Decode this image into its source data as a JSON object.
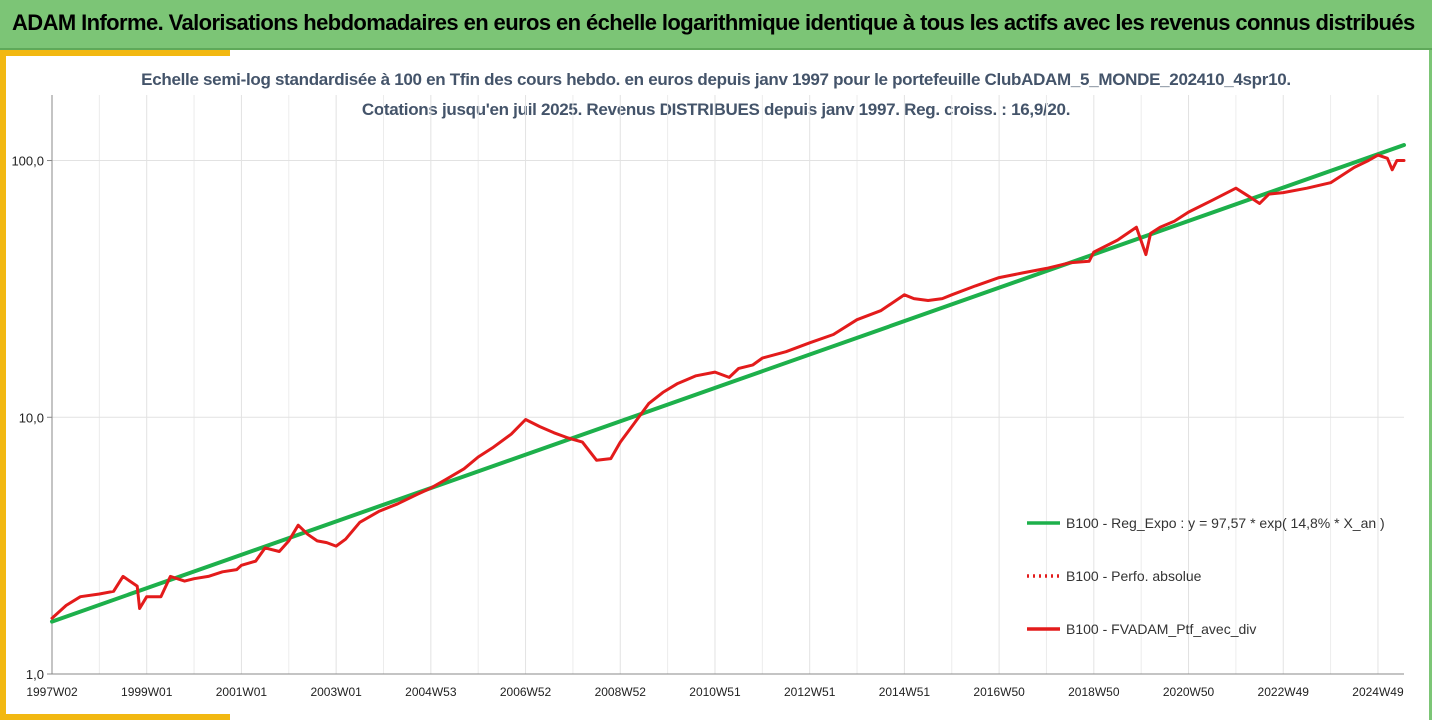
{
  "header": {
    "title": "ADAM Informe. Valorisations hebdomadaires en euros en échelle logarithmique identique à tous les actifs avec les revenus connus distribués"
  },
  "chart_data": {
    "type": "line",
    "title": "Echelle semi-log standardisée  à 100 en Tfin des cours hebdo.  en euros depuis janv 1997 pour le portefeuille ClubADAM_5_MONDE_202410_4spr10.",
    "subtitle": "Cotations  jusqu'en juil 2025. Revenus DISTRIBUES depuis janv 1997. Reg. croiss. : 16,9/20.",
    "y_scale": "log",
    "ylim": [
      1,
      180
    ],
    "y_ticks": [
      {
        "value": 1,
        "label": "1,0"
      },
      {
        "value": 10,
        "label": "10,0"
      },
      {
        "value": 100,
        "label": "100,0"
      }
    ],
    "xlim": [
      1997.0,
      2025.55
    ],
    "x_ticks": [
      {
        "value": 1997.0,
        "label": "1997W02"
      },
      {
        "value": 1999.0,
        "label": "1999W01"
      },
      {
        "value": 2001.0,
        "label": "2001W01"
      },
      {
        "value": 2003.0,
        "label": "2003W01"
      },
      {
        "value": 2005.0,
        "label": "2004W53"
      },
      {
        "value": 2007.0,
        "label": "2006W52"
      },
      {
        "value": 2009.0,
        "label": "2008W52"
      },
      {
        "value": 2011.0,
        "label": "2010W51"
      },
      {
        "value": 2013.0,
        "label": "2012W51"
      },
      {
        "value": 2015.0,
        "label": "2014W51"
      },
      {
        "value": 2017.0,
        "label": "2016W50"
      },
      {
        "value": 2019.0,
        "label": "2018W50"
      },
      {
        "value": 2021.0,
        "label": "2020W50"
      },
      {
        "value": 2023.0,
        "label": "2022W49"
      },
      {
        "value": 2025.0,
        "label": "2024W49"
      }
    ],
    "grid": "vertical",
    "legend_position": "right",
    "series": [
      {
        "name": "B100 - Reg_Expo : y = 97,57 * exp( 14,8% *  X_an )",
        "color": "#1db04b",
        "style": "solid",
        "x": [
          1997.0,
          2025.55
        ],
        "y": [
          1.6,
          115
        ]
      },
      {
        "name": "B100 - Perfo. absolue",
        "color": "#e31b1b",
        "style": "dotted",
        "x": [],
        "y": []
      },
      {
        "name": "B100 - FVADAM_Ptf_avec_div",
        "color": "#e31b1b",
        "style": "solid",
        "x": [
          1997.0,
          1997.3,
          1997.6,
          1998.0,
          1998.3,
          1998.5,
          1998.8,
          1998.85,
          1999.0,
          1999.3,
          1999.5,
          1999.8,
          2000.0,
          2000.3,
          2000.6,
          2000.9,
          2001.0,
          2001.3,
          2001.5,
          2001.8,
          2002.0,
          2002.2,
          2002.4,
          2002.6,
          2002.8,
          2003.0,
          2003.2,
          2003.5,
          2003.9,
          2004.3,
          2004.7,
          2005.0,
          2005.3,
          2005.7,
          2006.0,
          2006.3,
          2006.7,
          2007.0,
          2007.3,
          2007.6,
          2007.9,
          2008.2,
          2008.5,
          2008.8,
          2009.0,
          2009.3,
          2009.6,
          2009.9,
          2010.2,
          2010.6,
          2011.0,
          2011.3,
          2011.5,
          2011.8,
          2012.0,
          2012.5,
          2013.0,
          2013.5,
          2014.0,
          2014.5,
          2015.0,
          2015.2,
          2015.5,
          2015.8,
          2016.0,
          2016.5,
          2017.0,
          2017.5,
          2018.0,
          2018.5,
          2018.9,
          2019.0,
          2019.5,
          2019.9,
          2020.1,
          2020.2,
          2020.4,
          2020.7,
          2021.0,
          2021.5,
          2022.0,
          2022.3,
          2022.5,
          2022.7,
          2023.0,
          2023.5,
          2024.0,
          2024.5,
          2024.8,
          2025.0,
          2025.2,
          2025.3,
          2025.4,
          2025.55
        ],
        "y": [
          1.65,
          1.85,
          2.0,
          2.05,
          2.1,
          2.4,
          2.2,
          1.8,
          2.0,
          2.0,
          2.4,
          2.3,
          2.35,
          2.4,
          2.5,
          2.55,
          2.65,
          2.75,
          3.1,
          3.0,
          3.3,
          3.8,
          3.5,
          3.3,
          3.25,
          3.15,
          3.35,
          3.9,
          4.3,
          4.6,
          5.0,
          5.3,
          5.7,
          6.3,
          7.0,
          7.6,
          8.6,
          9.8,
          9.2,
          8.7,
          8.3,
          8.0,
          6.8,
          6.9,
          8.0,
          9.5,
          11.3,
          12.5,
          13.5,
          14.5,
          15.0,
          14.3,
          15.5,
          16.0,
          17.0,
          18.0,
          19.5,
          21.0,
          24.0,
          26.0,
          30.0,
          29.0,
          28.5,
          29.0,
          30.0,
          32.5,
          35.0,
          36.5,
          38.0,
          40.0,
          40.5,
          44.0,
          49.0,
          55.0,
          43.0,
          52.0,
          55.0,
          58.0,
          63.0,
          70.0,
          78.0,
          72.0,
          68.0,
          74.0,
          75.0,
          78.0,
          82.0,
          94.0,
          100.0,
          105.0,
          102.0,
          92.0,
          100.0,
          100.0
        ]
      }
    ]
  }
}
